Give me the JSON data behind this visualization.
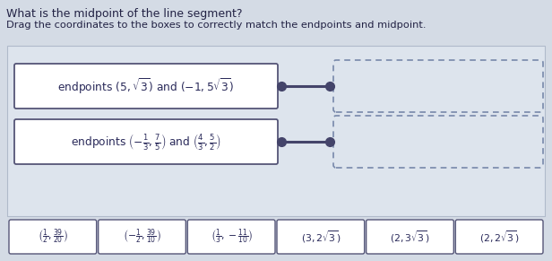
{
  "title": "What is the midpoint of the line segment?",
  "subtitle": "Drag the coordinates to the boxes to correctly match the endpoints and midpoint.",
  "bg_color": "#d4dbe5",
  "panel_bg": "#cdd5e0",
  "inner_bg": "#dde4ed",
  "box_bg": "#ffffff",
  "box_border": "#555577",
  "dashed_border": "#7788aa",
  "text_color": "#2a2a5a",
  "connector_color": "#44446a",
  "title_color": "#222244",
  "answer_boxes": [
    "$\\left(\\frac{1}{2}, \\frac{39}{20}\\right)$",
    "$\\left(-\\frac{1}{2}, \\frac{39}{10}\\right)$",
    "$\\left(\\frac{1}{3}, -\\frac{11}{10}\\right)$",
    "$(3, 2\\sqrt{3})$",
    "$(2, 3\\sqrt{3})$",
    "$(2, 2\\sqrt{3})$"
  ],
  "row1_label": "endpoints $(5, \\sqrt{3})$ and $(-1, 5\\sqrt{3})$",
  "row2_label": "endpoints $\\left(-\\frac{1}{3}, \\frac{7}{5}\\right)$ and $\\left(\\frac{4}{3}, \\frac{5}{2}\\right)$",
  "figw": 6.16,
  "figh": 2.91,
  "dpi": 100
}
